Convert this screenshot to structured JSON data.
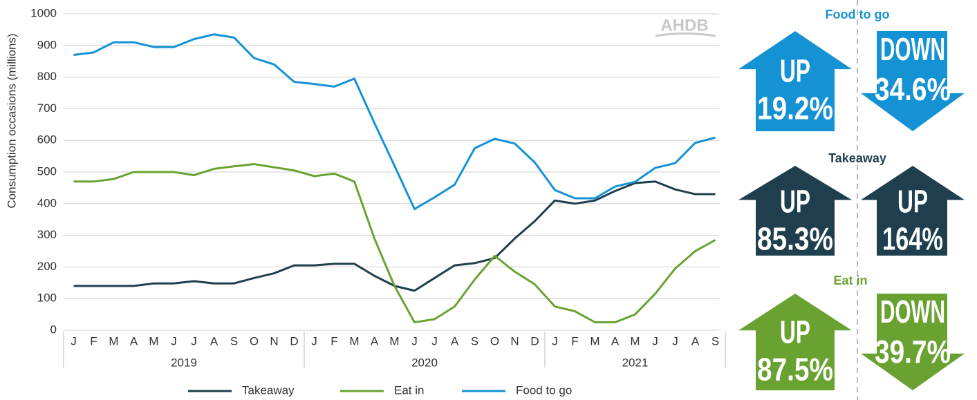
{
  "chart_data": {
    "type": "line",
    "y_label": "Consumption occasions (millions)",
    "watermark": "AHDB",
    "year_groups": [
      {
        "label": "2019",
        "months": [
          "J",
          "F",
          "M",
          "A",
          "M",
          "J",
          "J",
          "A",
          "S",
          "O",
          "N",
          "D"
        ]
      },
      {
        "label": "2020",
        "months": [
          "J",
          "F",
          "M",
          "A",
          "M",
          "J",
          "J",
          "A",
          "S",
          "O",
          "N",
          "D"
        ]
      },
      {
        "label": "2021",
        "months": [
          "J",
          "F",
          "M",
          "A",
          "M",
          "J",
          "J",
          "A",
          "S"
        ]
      }
    ],
    "series": [
      {
        "name": "Takeaway",
        "color": "#1f3f4e",
        "values": [
          140,
          140,
          140,
          140,
          148,
          148,
          155,
          148,
          148,
          165,
          180,
          205,
          205,
          210,
          210,
          172,
          140,
          125,
          165,
          205,
          212,
          228,
          290,
          345,
          410,
          400,
          410,
          440,
          465,
          470,
          445,
          430,
          430
        ]
      },
      {
        "name": "Eat in",
        "color": "#6aa232",
        "values": [
          470,
          470,
          478,
          500,
          500,
          500,
          490,
          510,
          518,
          525,
          515,
          505,
          487,
          495,
          470,
          290,
          140,
          25,
          35,
          75,
          160,
          235,
          185,
          145,
          75,
          60,
          25,
          25,
          50,
          115,
          195,
          250,
          285
        ]
      },
      {
        "name": "Food to go",
        "color": "#1592d3",
        "values": [
          870,
          878,
          910,
          910,
          895,
          895,
          920,
          935,
          925,
          860,
          840,
          785,
          778,
          770,
          795,
          655,
          520,
          383,
          420,
          460,
          575,
          605,
          590,
          530,
          443,
          417,
          417,
          454,
          469,
          513,
          528,
          592,
          609
        ]
      }
    ],
    "ylim": [
      0,
      1000
    ],
    "yticks": [
      0,
      100,
      200,
      300,
      400,
      500,
      600,
      700,
      800,
      900,
      1000
    ],
    "grid": true,
    "legend": "bottom"
  },
  "panels": [
    {
      "title": "Food to go",
      "color": "#1592d3",
      "arrows": [
        {
          "direction": "UP",
          "value": "19.2%"
        },
        {
          "direction": "DOWN",
          "value": "34.6%"
        }
      ]
    },
    {
      "title": "Takeaway",
      "color": "#1f3f4e",
      "arrows": [
        {
          "direction": "UP",
          "value": "85.3%"
        },
        {
          "direction": "UP",
          "value": "164%"
        }
      ]
    },
    {
      "title": "Eat in",
      "color": "#6aa232",
      "arrows": [
        {
          "direction": "UP",
          "value": "87.5%"
        },
        {
          "direction": "DOWN",
          "value": "39.7%"
        }
      ]
    }
  ]
}
